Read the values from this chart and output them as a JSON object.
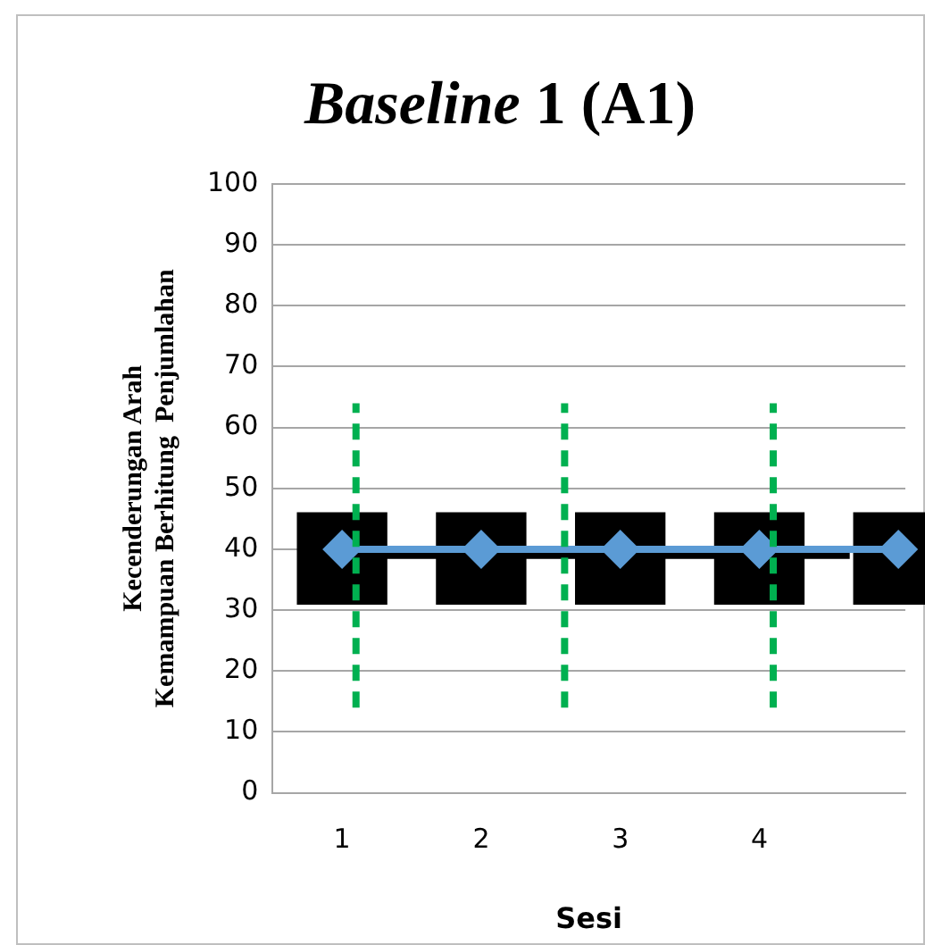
{
  "chart_data": {
    "type": "line",
    "title": "Baseline 1 (A1)",
    "xlabel": "Sesi",
    "ylabel": "Kecenderungan Arah\nKemampuan Berhitung  Penjumlahan",
    "x": [
      1,
      2,
      3,
      4,
      5
    ],
    "xlim": [
      0.5,
      5.05
    ],
    "xticks": [
      1,
      2,
      3,
      4
    ],
    "ylim": [
      0,
      100
    ],
    "yticks": [
      0,
      10,
      20,
      30,
      40,
      50,
      60,
      70,
      80,
      90,
      100
    ],
    "grid": "y",
    "series": [
      {
        "type": "bar",
        "color": "#000000",
        "base": [
          31,
          31,
          31,
          31,
          31
        ],
        "values": [
          15,
          15,
          15,
          15,
          15
        ]
      },
      {
        "marker": "none",
        "color": "#000000",
        "x": [
          0.85,
          4.65
        ],
        "values": [
          39,
          39
        ]
      },
      {
        "marker": "diamond",
        "color": "#5b9bd5",
        "values": [
          40,
          40,
          40,
          40,
          40
        ]
      },
      {
        "marker": "none",
        "line_style": "dashed",
        "color": "#00b050",
        "x": [
          1.1,
          1.1
        ],
        "values": [
          14,
          64
        ]
      },
      {
        "marker": "none",
        "line_style": "dashed",
        "color": "#00b050",
        "x": [
          2.6,
          2.6
        ],
        "values": [
          14,
          64
        ]
      },
      {
        "marker": "none",
        "line_style": "dashed",
        "color": "#00b050",
        "x": [
          4.1,
          4.1
        ],
        "values": [
          14,
          64
        ]
      }
    ]
  }
}
